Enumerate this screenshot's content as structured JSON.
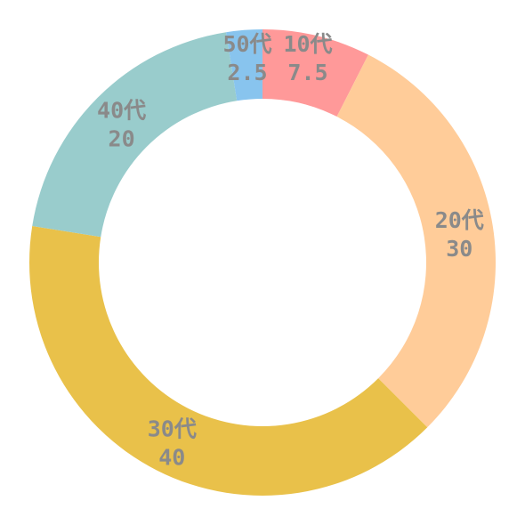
{
  "chart_data": {
    "type": "pie",
    "donut": true,
    "title": "",
    "legend": "none",
    "slices": [
      {
        "label": "10代",
        "value": 7.5,
        "value_text": "7.5",
        "color": "#FF9999"
      },
      {
        "label": "20代",
        "value": 30,
        "value_text": "30",
        "color": "#FFCC99"
      },
      {
        "label": "30代",
        "value": 40,
        "value_text": "40",
        "color": "#E9C14A"
      },
      {
        "label": "40代",
        "value": 20,
        "value_text": "20",
        "color": "#99CCCC"
      },
      {
        "label": "50代",
        "value": 2.5,
        "value_text": "2.5",
        "color": "#88C4EE"
      }
    ]
  }
}
